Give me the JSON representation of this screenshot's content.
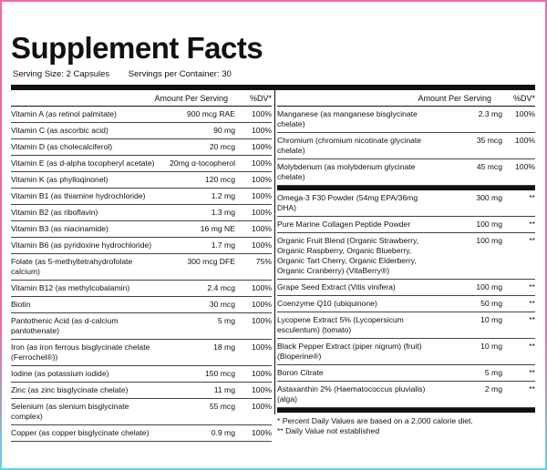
{
  "title": "Supplement Facts",
  "serving": {
    "size": "Serving Size: 2 Capsules",
    "per_container": "Servings per Container: 30"
  },
  "header": {
    "amount": "Amount Per Serving",
    "dv": "%DV*"
  },
  "left_rows": [
    {
      "name": "Vitamin A (as retinol palmitate)",
      "amount": "900 mcg RAE",
      "dv": "100%"
    },
    {
      "name": "Vitamin C (as ascorbic acid)",
      "amount": "90 mg",
      "dv": "100%"
    },
    {
      "name": "Vitamin D (as cholecalciferol)",
      "amount": "20 mcg",
      "dv": "100%"
    },
    {
      "name": "Vitamin E (as d-alpha tocopheryl acetate)",
      "amount": "20mg α-tocopherol",
      "dv": "100%"
    },
    {
      "name": "Vitamin K (as phylloqinonel)",
      "amount": "120 mcg",
      "dv": "100%"
    },
    {
      "name": "Vitamin B1 (as thiamine hydrochloride)",
      "amount": "1.2 mg",
      "dv": "100%"
    },
    {
      "name": "Vitamin B2 (as riboflavin)",
      "amount": "1.3 mg",
      "dv": "100%"
    },
    {
      "name": "Vitamin B3 (as niacinamide)",
      "amount": "16 mg NE",
      "dv": "100%"
    },
    {
      "name": "Vitamin B6 (as pyridoxine hydrochloride)",
      "amount": "1.7 mg",
      "dv": "100%"
    },
    {
      "name": "Folate (as 5-methyltetrahydrofolate calcium)",
      "amount": "300 mcg DFE",
      "dv": "75%"
    },
    {
      "name": "Vitamin B12 (as methylcobalamin)",
      "amount": "2.4 mcg",
      "dv": "100%"
    },
    {
      "name": "Biotin",
      "amount": "30 mcg",
      "dv": "100%"
    },
    {
      "name": "Pantothenic Acid (as d-calcium pantothenate)",
      "amount": "5 mg",
      "dv": "100%"
    },
    {
      "name": "Iron (as iron ferrous bisglycinate chelate (Ferrochel®))",
      "amount": "18 mg",
      "dv": "100%"
    },
    {
      "name": "Iodine (as potassium iodide)",
      "amount": "150 mcg",
      "dv": "100%"
    },
    {
      "name": "Zinc (as zinc bisglycinate chelate)",
      "amount": "11 mg",
      "dv": "100%"
    },
    {
      "name": "Selenium (as slenium bisglycinate complex)",
      "amount": "55 mcg",
      "dv": "100%"
    },
    {
      "name": "Copper (as copper bisglycinate chelate)",
      "amount": "0.9 mg",
      "dv": "100%"
    }
  ],
  "right_rows_a": [
    {
      "name": "Manganese (as manganese bisglycinate chelate)",
      "amount": "2.3 mg",
      "dv": "100%"
    },
    {
      "name": "Chromium (chromium nicotinate glycinate chelate)",
      "amount": "35 mcg",
      "dv": "100%"
    },
    {
      "name": "Molybdenum (as molybdenum glycinate chelate)",
      "amount": "45 mcg",
      "dv": "100%"
    }
  ],
  "right_rows_b": [
    {
      "name": "Omega-3 F30 Powder (54mg EPA/36mg DHA)",
      "amount": "300 mg",
      "dv": "**"
    },
    {
      "name": "Pure Marine Collagen Peptide Powder",
      "amount": "100 mg",
      "dv": "**"
    },
    {
      "name": "Organic Fruit Blend (Organic Strawberry, Organic Raspberry, Organic Blueberry, Organic Tart Cherry, Organic Elderberry, Organic Cranberry) (VitaBerry®)",
      "amount": "100 mg",
      "dv": "**"
    },
    {
      "name": "Grape Seed Extract (Vitis vinifera)",
      "amount": "100 mg",
      "dv": "**"
    },
    {
      "name": "Coenzyme Q10 (ubiquinone)",
      "amount": "50 mg",
      "dv": "**"
    },
    {
      "name": "Lycopene Extract 5% (Lycopersicum esculentum) (tomato)",
      "amount": "10 mg",
      "dv": "**"
    },
    {
      "name": "Black Pepper Extract (piper nigrum) (fruit) (Bioperine®)",
      "amount": "10 mg",
      "dv": "**"
    },
    {
      "name": "Boron Citrate",
      "amount": "5 mg",
      "dv": "**"
    },
    {
      "name": "Astaxanthin 2% (Haematococcus pluvialis) (alga)",
      "amount": "2 mg",
      "dv": "**"
    }
  ],
  "footnotes": {
    "dv": "* Percent Daily Values are based on a 2,000 calorie diet.",
    "not_established": "** Daily Value not established"
  },
  "colors": {
    "border_pink": "#f06aa8",
    "border_cyan": "#5fd3e6",
    "ink": "#111111"
  }
}
